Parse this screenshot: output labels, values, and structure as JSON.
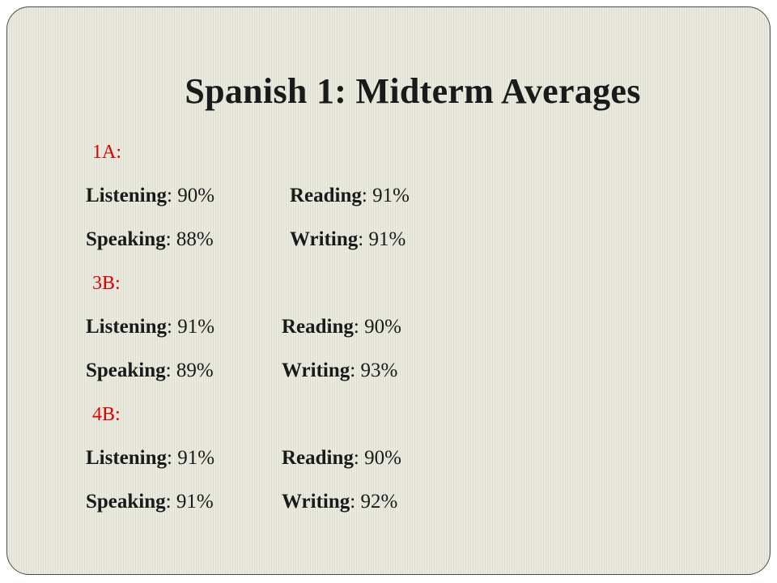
{
  "title": "Spanish 1: Midterm Averages",
  "sections": [
    {
      "label": "1A:",
      "rows": [
        [
          {
            "skill": "Listening",
            "value": "90%"
          },
          {
            "skill": "Reading",
            "value": "91%"
          }
        ],
        [
          {
            "skill": "Speaking",
            "value": "88%"
          },
          {
            "skill": "Writing",
            "value": "91%"
          }
        ]
      ]
    },
    {
      "label": "3B:",
      "rows": [
        [
          {
            "skill": "Listening",
            "value": "91%"
          },
          {
            "skill": "Reading",
            "value": "90%"
          }
        ],
        [
          {
            "skill": "Speaking",
            "value": "89%"
          },
          {
            "skill": "Writing",
            "value": "93%"
          }
        ]
      ]
    },
    {
      "label": "4B:",
      "rows": [
        [
          {
            "skill": "Listening",
            "value": "91%"
          },
          {
            "skill": "Reading",
            "value": "90%"
          }
        ],
        [
          {
            "skill": "Speaking",
            "value": "91%"
          },
          {
            "skill": "Writing",
            "value": "92%"
          }
        ]
      ]
    }
  ],
  "colors": {
    "section_label": "#e00000",
    "text": "#1a1a1a",
    "background": "#ecebe0"
  }
}
